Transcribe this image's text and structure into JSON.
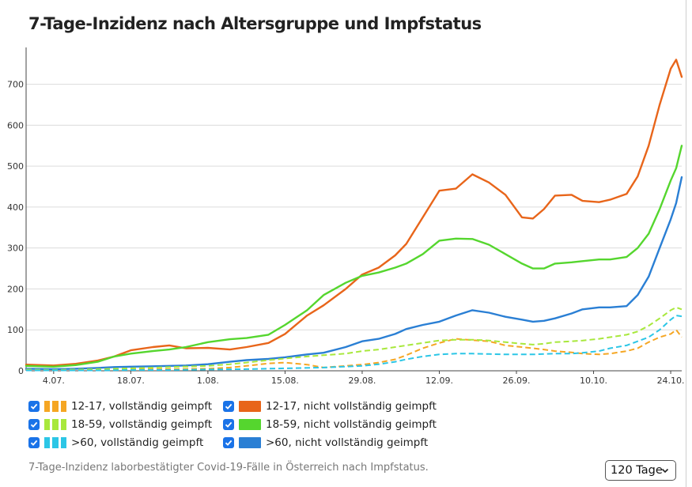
{
  "title": "7-Tage-Inzidenz nach Altersgruppe und Impfstatus",
  "caption": "7-Tage-Inzidenz laborbestätigter Covid-19-Fälle in Österreich nach Impfstatus.",
  "range_select": {
    "value": "120 Tage"
  },
  "legend": [
    {
      "label": "12-17, vollständig geimpft",
      "color": "#f5a623",
      "style": "dashed",
      "checked": true
    },
    {
      "label": "12-17, nicht vollständig geimpft",
      "color": "#e8651a",
      "style": "solid",
      "checked": true
    },
    {
      "label": "18-59, vollständig geimpft",
      "color": "#a8e83c",
      "style": "dashed",
      "checked": true
    },
    {
      "label": "18-59, nicht vollständig geimpft",
      "color": "#55d62e",
      "style": "solid",
      "checked": true
    },
    {
      "label": ">60, vollständig geimpft",
      "color": "#2cc6e6",
      "style": "dashed",
      "checked": true
    },
    {
      "label": ">60, nicht vollständig geimpft",
      "color": "#2a7fd4",
      "style": "solid",
      "checked": true
    }
  ],
  "chart_data": {
    "type": "line",
    "title": "7-Tage-Inzidenz nach Altersgruppe und Impfstatus",
    "x_start": "2021-06-29",
    "x_end": "2021-10-26",
    "x_ticks": [
      {
        "date": "2021-07-04",
        "label": "4.07."
      },
      {
        "date": "2021-07-18",
        "label": "18.07."
      },
      {
        "date": "2021-08-01",
        "label": "1.08."
      },
      {
        "date": "2021-08-15",
        "label": "15.08."
      },
      {
        "date": "2021-08-29",
        "label": "29.08."
      },
      {
        "date": "2021-09-12",
        "label": "12.09."
      },
      {
        "date": "2021-09-26",
        "label": "26.09."
      },
      {
        "date": "2021-10-10",
        "label": "10.10."
      },
      {
        "date": "2021-10-24",
        "label": "24.10."
      }
    ],
    "y_ticks": [
      0,
      100,
      200,
      300,
      400,
      500,
      600,
      700
    ],
    "ylim": [
      0,
      790
    ],
    "grid": "horizontal",
    "series": [
      {
        "name": "12-17, nicht vollständig geimpft",
        "color": "#e8651a",
        "dash": false,
        "points": [
          [
            "2021-06-29",
            15
          ],
          [
            "2021-07-04",
            13
          ],
          [
            "2021-07-08",
            17
          ],
          [
            "2021-07-12",
            25
          ],
          [
            "2021-07-15",
            35
          ],
          [
            "2021-07-18",
            50
          ],
          [
            "2021-07-22",
            58
          ],
          [
            "2021-07-25",
            62
          ],
          [
            "2021-07-28",
            55
          ],
          [
            "2021-08-01",
            56
          ],
          [
            "2021-08-05",
            52
          ],
          [
            "2021-08-08",
            58
          ],
          [
            "2021-08-12",
            68
          ],
          [
            "2021-08-15",
            90
          ],
          [
            "2021-08-19",
            135
          ],
          [
            "2021-08-22",
            160
          ],
          [
            "2021-08-26",
            200
          ],
          [
            "2021-08-29",
            235
          ],
          [
            "2021-09-01",
            252
          ],
          [
            "2021-09-04",
            282
          ],
          [
            "2021-09-06",
            310
          ],
          [
            "2021-09-09",
            375
          ],
          [
            "2021-09-12",
            440
          ],
          [
            "2021-09-15",
            445
          ],
          [
            "2021-09-18",
            480
          ],
          [
            "2021-09-21",
            460
          ],
          [
            "2021-09-24",
            430
          ],
          [
            "2021-09-27",
            375
          ],
          [
            "2021-09-29",
            372
          ],
          [
            "2021-10-01",
            395
          ],
          [
            "2021-10-03",
            428
          ],
          [
            "2021-10-06",
            430
          ],
          [
            "2021-10-08",
            415
          ],
          [
            "2021-10-11",
            412
          ],
          [
            "2021-10-13",
            418
          ],
          [
            "2021-10-16",
            432
          ],
          [
            "2021-10-18",
            475
          ],
          [
            "2021-10-20",
            550
          ],
          [
            "2021-10-22",
            650
          ],
          [
            "2021-10-24",
            738
          ],
          [
            "2021-10-25",
            760
          ],
          [
            "2021-10-26",
            718
          ]
        ]
      },
      {
        "name": "18-59, nicht vollständig geimpft",
        "color": "#55d62e",
        "dash": false,
        "points": [
          [
            "2021-06-29",
            12
          ],
          [
            "2021-07-04",
            10
          ],
          [
            "2021-07-08",
            14
          ],
          [
            "2021-07-12",
            22
          ],
          [
            "2021-07-15",
            35
          ],
          [
            "2021-07-18",
            42
          ],
          [
            "2021-07-22",
            48
          ],
          [
            "2021-07-25",
            52
          ],
          [
            "2021-07-28",
            58
          ],
          [
            "2021-08-01",
            70
          ],
          [
            "2021-08-05",
            77
          ],
          [
            "2021-08-08",
            80
          ],
          [
            "2021-08-12",
            88
          ],
          [
            "2021-08-15",
            112
          ],
          [
            "2021-08-19",
            148
          ],
          [
            "2021-08-22",
            185
          ],
          [
            "2021-08-26",
            215
          ],
          [
            "2021-08-29",
            232
          ],
          [
            "2021-09-01",
            240
          ],
          [
            "2021-09-04",
            252
          ],
          [
            "2021-09-06",
            262
          ],
          [
            "2021-09-09",
            285
          ],
          [
            "2021-09-12",
            318
          ],
          [
            "2021-09-15",
            323
          ],
          [
            "2021-09-18",
            322
          ],
          [
            "2021-09-21",
            308
          ],
          [
            "2021-09-24",
            285
          ],
          [
            "2021-09-27",
            262
          ],
          [
            "2021-09-29",
            250
          ],
          [
            "2021-10-01",
            250
          ],
          [
            "2021-10-03",
            262
          ],
          [
            "2021-10-06",
            265
          ],
          [
            "2021-10-08",
            268
          ],
          [
            "2021-10-11",
            272
          ],
          [
            "2021-10-13",
            272
          ],
          [
            "2021-10-16",
            278
          ],
          [
            "2021-10-18",
            300
          ],
          [
            "2021-10-20",
            335
          ],
          [
            "2021-10-22",
            395
          ],
          [
            "2021-10-24",
            465
          ],
          [
            "2021-10-25",
            495
          ],
          [
            "2021-10-26",
            550
          ]
        ]
      },
      {
        "name": ">60, nicht vollständig geimpft",
        "color": "#2a7fd4",
        "dash": false,
        "points": [
          [
            "2021-06-29",
            5
          ],
          [
            "2021-07-04",
            4
          ],
          [
            "2021-07-08",
            5
          ],
          [
            "2021-07-12",
            7
          ],
          [
            "2021-07-15",
            9
          ],
          [
            "2021-07-18",
            10
          ],
          [
            "2021-07-22",
            11
          ],
          [
            "2021-07-25",
            12
          ],
          [
            "2021-07-28",
            13
          ],
          [
            "2021-08-01",
            16
          ],
          [
            "2021-08-05",
            22
          ],
          [
            "2021-08-08",
            26
          ],
          [
            "2021-08-12",
            29
          ],
          [
            "2021-08-15",
            33
          ],
          [
            "2021-08-19",
            40
          ],
          [
            "2021-08-22",
            44
          ],
          [
            "2021-08-26",
            58
          ],
          [
            "2021-08-29",
            72
          ],
          [
            "2021-09-01",
            78
          ],
          [
            "2021-09-04",
            90
          ],
          [
            "2021-09-06",
            102
          ],
          [
            "2021-09-09",
            112
          ],
          [
            "2021-09-12",
            120
          ],
          [
            "2021-09-15",
            135
          ],
          [
            "2021-09-18",
            148
          ],
          [
            "2021-09-21",
            142
          ],
          [
            "2021-09-24",
            132
          ],
          [
            "2021-09-27",
            125
          ],
          [
            "2021-09-29",
            120
          ],
          [
            "2021-10-01",
            122
          ],
          [
            "2021-10-03",
            128
          ],
          [
            "2021-10-06",
            140
          ],
          [
            "2021-10-08",
            150
          ],
          [
            "2021-10-11",
            155
          ],
          [
            "2021-10-13",
            155
          ],
          [
            "2021-10-16",
            158
          ],
          [
            "2021-10-18",
            185
          ],
          [
            "2021-10-20",
            230
          ],
          [
            "2021-10-22",
            300
          ],
          [
            "2021-10-24",
            370
          ],
          [
            "2021-10-25",
            410
          ],
          [
            "2021-10-26",
            473
          ]
        ]
      },
      {
        "name": "12-17, vollständig geimpft",
        "color": "#f5a623",
        "dash": true,
        "points": [
          [
            "2021-06-29",
            2
          ],
          [
            "2021-07-04",
            2
          ],
          [
            "2021-07-12",
            3
          ],
          [
            "2021-07-18",
            3
          ],
          [
            "2021-07-25",
            4
          ],
          [
            "2021-08-01",
            5
          ],
          [
            "2021-08-05",
            8
          ],
          [
            "2021-08-08",
            12
          ],
          [
            "2021-08-12",
            18
          ],
          [
            "2021-08-15",
            20
          ],
          [
            "2021-08-19",
            15
          ],
          [
            "2021-08-22",
            8
          ],
          [
            "2021-08-26",
            12
          ],
          [
            "2021-08-29",
            15
          ],
          [
            "2021-09-01",
            20
          ],
          [
            "2021-09-04",
            28
          ],
          [
            "2021-09-06",
            38
          ],
          [
            "2021-09-09",
            55
          ],
          [
            "2021-09-12",
            68
          ],
          [
            "2021-09-15",
            78
          ],
          [
            "2021-09-18",
            75
          ],
          [
            "2021-09-21",
            72
          ],
          [
            "2021-09-24",
            62
          ],
          [
            "2021-09-27",
            58
          ],
          [
            "2021-09-29",
            55
          ],
          [
            "2021-10-01",
            52
          ],
          [
            "2021-10-03",
            48
          ],
          [
            "2021-10-06",
            45
          ],
          [
            "2021-10-08",
            42
          ],
          [
            "2021-10-11",
            40
          ],
          [
            "2021-10-13",
            42
          ],
          [
            "2021-10-16",
            48
          ],
          [
            "2021-10-18",
            55
          ],
          [
            "2021-10-20",
            70
          ],
          [
            "2021-10-22",
            82
          ],
          [
            "2021-10-24",
            90
          ],
          [
            "2021-10-25",
            100
          ],
          [
            "2021-10-26",
            82
          ]
        ]
      },
      {
        "name": "18-59, vollständig geimpft",
        "color": "#a8e83c",
        "dash": true,
        "points": [
          [
            "2021-06-29",
            3
          ],
          [
            "2021-07-04",
            2
          ],
          [
            "2021-07-12",
            4
          ],
          [
            "2021-07-18",
            6
          ],
          [
            "2021-07-25",
            9
          ],
          [
            "2021-08-01",
            12
          ],
          [
            "2021-08-05",
            16
          ],
          [
            "2021-08-08",
            20
          ],
          [
            "2021-08-12",
            26
          ],
          [
            "2021-08-15",
            30
          ],
          [
            "2021-08-19",
            35
          ],
          [
            "2021-08-22",
            38
          ],
          [
            "2021-08-26",
            42
          ],
          [
            "2021-08-29",
            48
          ],
          [
            "2021-09-01",
            52
          ],
          [
            "2021-09-04",
            58
          ],
          [
            "2021-09-06",
            62
          ],
          [
            "2021-09-09",
            68
          ],
          [
            "2021-09-12",
            74
          ],
          [
            "2021-09-15",
            76
          ],
          [
            "2021-09-18",
            76
          ],
          [
            "2021-09-21",
            74
          ],
          [
            "2021-09-24",
            70
          ],
          [
            "2021-09-27",
            66
          ],
          [
            "2021-09-29",
            64
          ],
          [
            "2021-10-01",
            66
          ],
          [
            "2021-10-03",
            70
          ],
          [
            "2021-10-06",
            72
          ],
          [
            "2021-10-08",
            74
          ],
          [
            "2021-10-11",
            78
          ],
          [
            "2021-10-13",
            82
          ],
          [
            "2021-10-16",
            88
          ],
          [
            "2021-10-18",
            96
          ],
          [
            "2021-10-20",
            110
          ],
          [
            "2021-10-22",
            128
          ],
          [
            "2021-10-24",
            148
          ],
          [
            "2021-10-25",
            155
          ],
          [
            "2021-10-26",
            150
          ]
        ]
      },
      {
        "name": ">60, vollständig geimpft",
        "color": "#2cc6e6",
        "dash": true,
        "points": [
          [
            "2021-06-29",
            1
          ],
          [
            "2021-07-04",
            1
          ],
          [
            "2021-07-12",
            1
          ],
          [
            "2021-07-18",
            2
          ],
          [
            "2021-07-25",
            2
          ],
          [
            "2021-08-01",
            3
          ],
          [
            "2021-08-08",
            4
          ],
          [
            "2021-08-15",
            6
          ],
          [
            "2021-08-22",
            8
          ],
          [
            "2021-08-29",
            12
          ],
          [
            "2021-09-01",
            16
          ],
          [
            "2021-09-04",
            22
          ],
          [
            "2021-09-06",
            28
          ],
          [
            "2021-09-09",
            35
          ],
          [
            "2021-09-12",
            40
          ],
          [
            "2021-09-15",
            42
          ],
          [
            "2021-09-18",
            42
          ],
          [
            "2021-09-21",
            41
          ],
          [
            "2021-09-24",
            40
          ],
          [
            "2021-09-27",
            40
          ],
          [
            "2021-09-29",
            40
          ],
          [
            "2021-10-01",
            41
          ],
          [
            "2021-10-03",
            42
          ],
          [
            "2021-10-06",
            42
          ],
          [
            "2021-10-08",
            44
          ],
          [
            "2021-10-11",
            48
          ],
          [
            "2021-10-13",
            55
          ],
          [
            "2021-10-16",
            62
          ],
          [
            "2021-10-18",
            72
          ],
          [
            "2021-10-20",
            82
          ],
          [
            "2021-10-22",
            100
          ],
          [
            "2021-10-24",
            125
          ],
          [
            "2021-10-25",
            135
          ],
          [
            "2021-10-26",
            133
          ]
        ]
      }
    ]
  }
}
